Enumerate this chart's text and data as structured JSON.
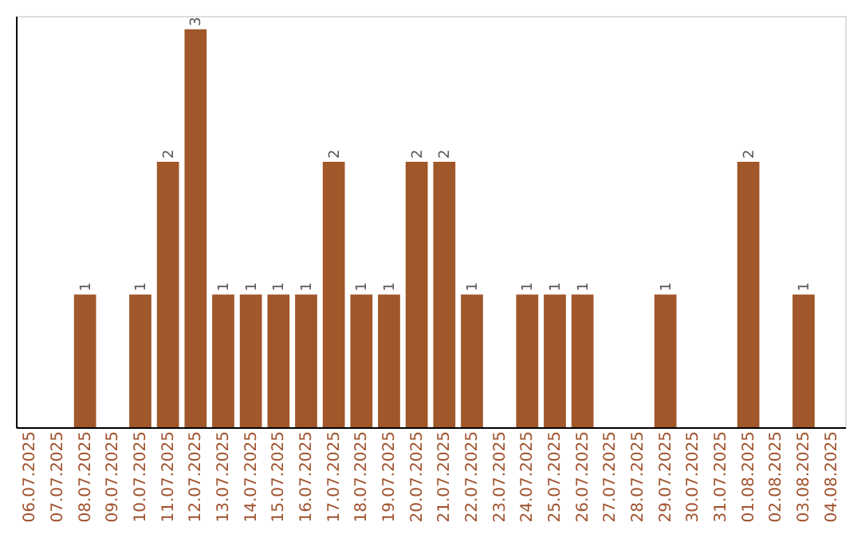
{
  "chart_data": {
    "type": "bar",
    "categories": [
      "06.07.2025",
      "07.07.2025",
      "08.07.2025",
      "09.07.2025",
      "10.07.2025",
      "11.07.2025",
      "12.07.2025",
      "13.07.2025",
      "14.07.2025",
      "15.07.2025",
      "16.07.2025",
      "17.07.2025",
      "18.07.2025",
      "19.07.2025",
      "20.07.2025",
      "21.07.2025",
      "22.07.2025",
      "23.07.2025",
      "24.07.2025",
      "25.07.2025",
      "26.07.2025",
      "27.07.2025",
      "28.07.2025",
      "29.07.2025",
      "30.07.2025",
      "31.07.2025",
      "01.08.2025",
      "02.08.2025",
      "03.08.2025",
      "04.08.2025"
    ],
    "values": [
      0,
      0,
      1,
      0,
      1,
      2,
      3,
      1,
      1,
      1,
      1,
      2,
      1,
      1,
      2,
      2,
      1,
      0,
      1,
      1,
      1,
      0,
      0,
      1,
      0,
      0,
      2,
      0,
      1,
      0
    ],
    "value_labels": [
      null,
      null,
      "1",
      null,
      "1",
      "2",
      "3",
      "1",
      "1",
      "1",
      "1",
      "2",
      "1",
      "1",
      "2",
      "2",
      "1",
      null,
      "1",
      "1",
      "1",
      null,
      null,
      "1",
      null,
      null,
      "2",
      null,
      "1",
      null
    ],
    "color": "#a0572a",
    "ylim": [
      0,
      3.1
    ],
    "tick_labels": "x",
    "grid": false
  }
}
